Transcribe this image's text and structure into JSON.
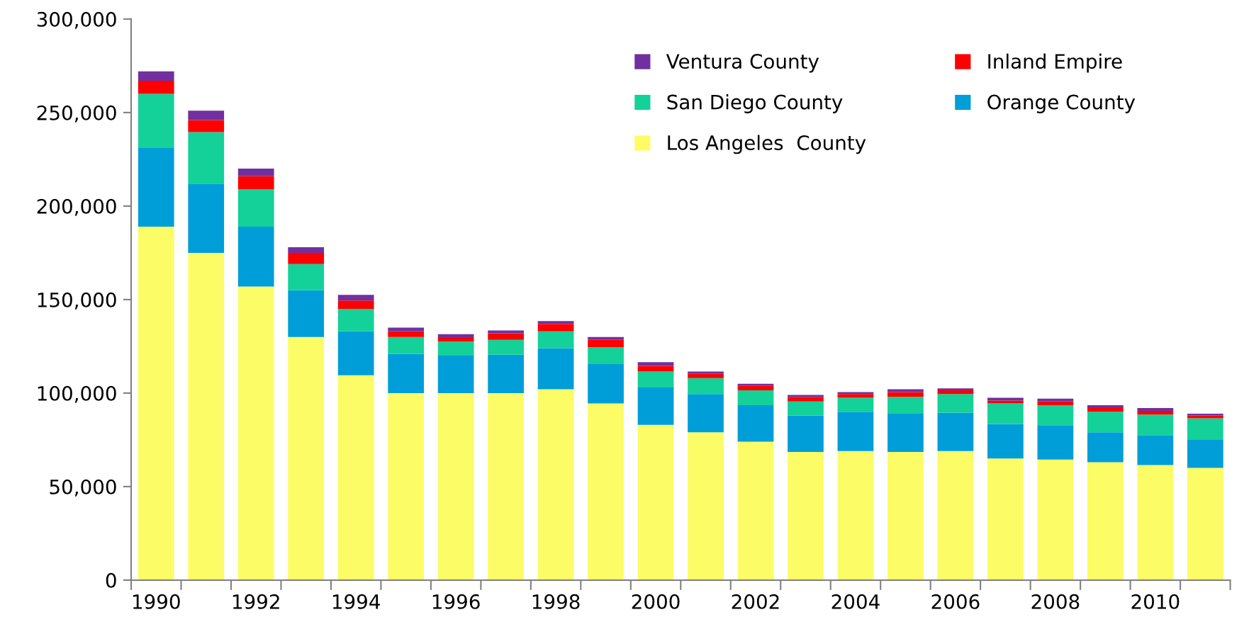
{
  "chart_data": {
    "type": "bar",
    "stacked": true,
    "categories": [
      "1990",
      null,
      "1992",
      null,
      "1994",
      null,
      "1996",
      null,
      "1998",
      null,
      "2000",
      null,
      "2002",
      null,
      "2004",
      null,
      "2006",
      null,
      "2008",
      null,
      "2010",
      null
    ],
    "series": [
      {
        "name": "Los Angeles  County",
        "color": "#fcfc66",
        "values": [
          189000,
          175000,
          157000,
          130000,
          109500,
          100000,
          100000,
          100000,
          102000,
          94500,
          83000,
          79000,
          74000,
          68500,
          69000,
          68500,
          69000,
          65000,
          64500,
          63000,
          61500,
          60000
        ]
      },
      {
        "name": "Orange County",
        "color": "#009ed8",
        "values": [
          42000,
          37000,
          32000,
          25000,
          23500,
          21000,
          20000,
          20500,
          22000,
          21000,
          20000,
          20500,
          19500,
          19500,
          21000,
          20500,
          20500,
          18500,
          18000,
          16000,
          16000,
          15000
        ]
      },
      {
        "name": "San Diego County",
        "color": "#13d198",
        "values": [
          29000,
          27500,
          20000,
          14000,
          12000,
          9000,
          7500,
          8000,
          9000,
          9000,
          8500,
          8500,
          8000,
          7500,
          7500,
          9000,
          10000,
          11000,
          11000,
          11000,
          11000,
          11500
        ]
      },
      {
        "name": "Inland Empire",
        "color": "#ff0000",
        "values": [
          7000,
          6500,
          7000,
          6000,
          4500,
          3000,
          2000,
          3500,
          4000,
          4000,
          3000,
          2500,
          2500,
          2500,
          2000,
          2500,
          2000,
          1500,
          2000,
          2000,
          2000,
          1500
        ]
      },
      {
        "name": "Ventura County",
        "color": "#7030a0",
        "values": [
          5000,
          5000,
          4000,
          3000,
          3000,
          2000,
          2000,
          1500,
          1500,
          1500,
          2000,
          1000,
          1000,
          1000,
          1000,
          1500,
          1000,
          1500,
          1500,
          1500,
          1500,
          1000
        ]
      }
    ],
    "ylim": [
      0,
      300000
    ],
    "yticks": [
      {
        "value": 0,
        "label": "0"
      },
      {
        "value": 50000,
        "label": "50,000"
      },
      {
        "value": 100000,
        "label": "100,000"
      },
      {
        "value": 150000,
        "label": "150,000"
      },
      {
        "value": 200000,
        "label": "200,000"
      },
      {
        "value": 250000,
        "label": "250,000"
      },
      {
        "value": 300000,
        "label": "300,000"
      }
    ],
    "grid": false,
    "legend": "top right"
  }
}
